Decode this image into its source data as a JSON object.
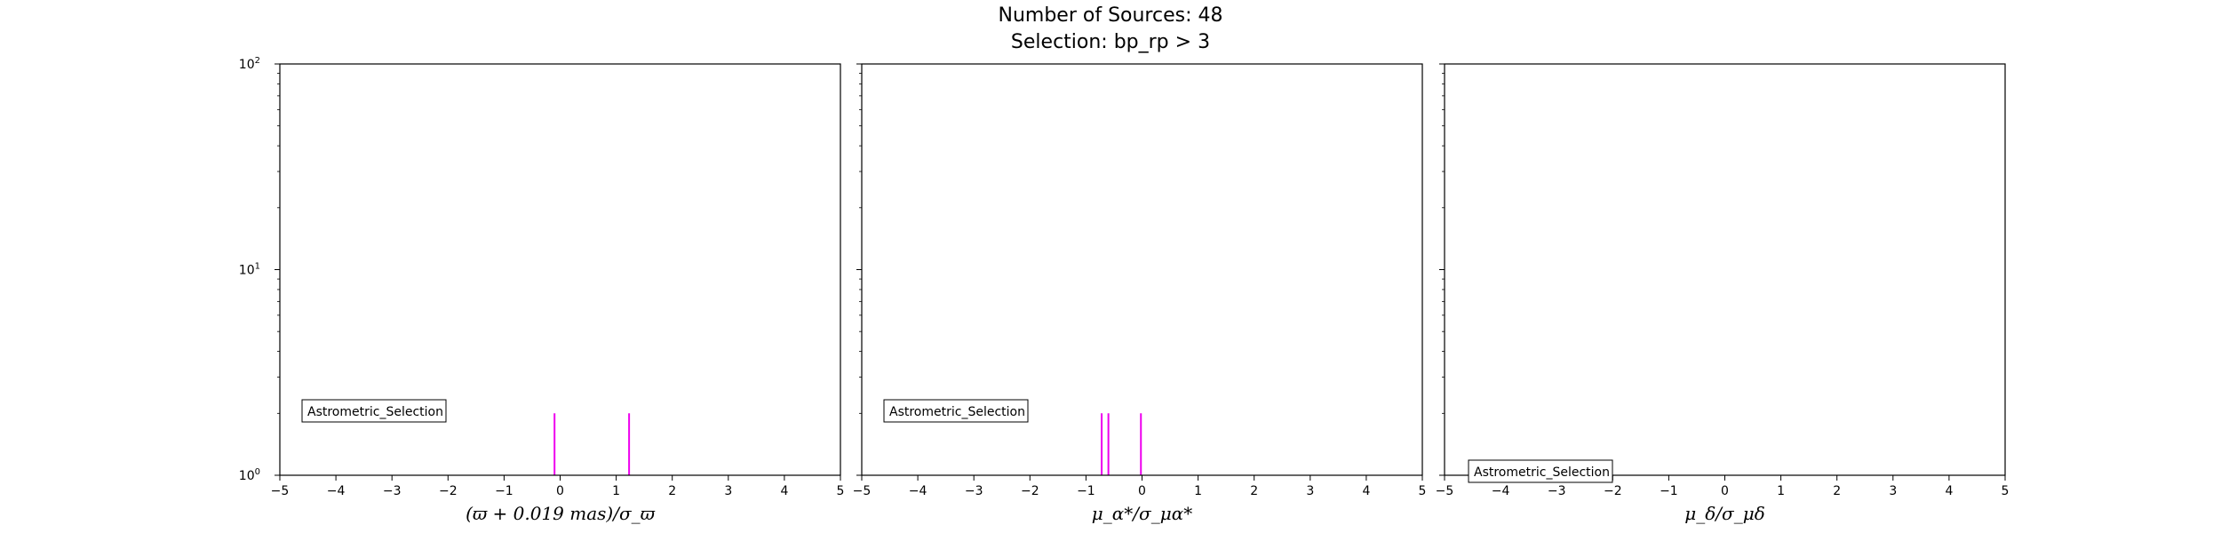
{
  "figure": {
    "title_line1": "Number of Sources: 48",
    "title_line2": "Selection: bp_rp > 3"
  },
  "colors": {
    "histogram": "#ee00ee",
    "axes": "#000000"
  },
  "chart_data": [
    {
      "type": "bar",
      "xlabel": "(ϖ + 0.019 mas)/σ_ϖ",
      "ylabel": "",
      "xlim": [
        -5,
        5
      ],
      "ylim": [
        1,
        100
      ],
      "yscale": "log",
      "xticks": [
        -5,
        -4,
        -3,
        -2,
        -1,
        0,
        1,
        2,
        3,
        4,
        5
      ],
      "xtick_labels": [
        "−5",
        "−4",
        "−3",
        "−2",
        "−1",
        "0",
        "1",
        "2",
        "3",
        "4",
        "5"
      ],
      "yticks": [
        1,
        10,
        100
      ],
      "ytick_labels": [
        "10⁰",
        "10¹",
        "10²"
      ],
      "annotation": "Astrometric_Selection",
      "annotation_position": "lower-left",
      "bars": [
        {
          "x": -0.1,
          "count": 2
        },
        {
          "x": 1.23,
          "count": 2
        }
      ]
    },
    {
      "type": "bar",
      "xlabel": "μ_α*/σ_μα*",
      "ylabel": "",
      "xlim": [
        -5,
        5
      ],
      "ylim": [
        1,
        100
      ],
      "yscale": "log",
      "xticks": [
        -5,
        -4,
        -3,
        -2,
        -1,
        0,
        1,
        2,
        3,
        4,
        5
      ],
      "xtick_labels": [
        "−5",
        "−4",
        "−3",
        "−2",
        "−1",
        "0",
        "1",
        "2",
        "3",
        "4",
        "5"
      ],
      "annotation": "Astrometric_Selection",
      "annotation_position": "lower-left",
      "bars": [
        {
          "x": -0.72,
          "count": 2
        },
        {
          "x": -0.6,
          "count": 2
        },
        {
          "x": -0.02,
          "count": 2
        }
      ]
    },
    {
      "type": "bar",
      "xlabel": "μ_δ/σ_μδ",
      "ylabel": "",
      "xlim": [
        -5,
        5
      ],
      "ylim": [
        1,
        100
      ],
      "yscale": "log",
      "xticks": [
        -5,
        -4,
        -3,
        -2,
        -1,
        0,
        1,
        2,
        3,
        4,
        5
      ],
      "xtick_labels": [
        "−5",
        "−4",
        "−3",
        "−2",
        "−1",
        "0",
        "1",
        "2",
        "3",
        "4",
        "5"
      ],
      "annotation": "Astrometric_Selection",
      "annotation_position": "bottom-left",
      "bars": []
    }
  ]
}
